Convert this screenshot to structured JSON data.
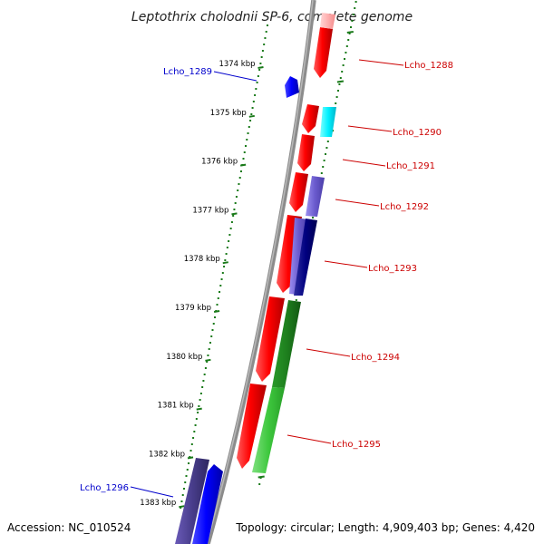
{
  "title": "Leptothrix cholodnii SP-6, complete genome",
  "footer": {
    "accession": "Accession: NC_010524",
    "topology": "Topology: circular; Length: 4,909,403 bp; Genes: 4,420"
  },
  "colors": {
    "backbone": "#8a8a8a",
    "tick": "#1a7a1a",
    "forward_label": "#cc0000",
    "reverse_label": "#0000cc"
  },
  "kbp_ticks": [
    {
      "label": "1374 kbp"
    },
    {
      "label": "1375 kbp"
    },
    {
      "label": "1376 kbp"
    },
    {
      "label": "1377 kbp"
    },
    {
      "label": "1378 kbp"
    },
    {
      "label": "1379 kbp"
    },
    {
      "label": "1380 kbp"
    },
    {
      "label": "1381 kbp"
    },
    {
      "label": "1382 kbp"
    },
    {
      "label": "1383 kbp"
    }
  ],
  "gene_labels": [
    {
      "name": "Lcho_1288",
      "strand": "forward"
    },
    {
      "name": "Lcho_1289",
      "strand": "reverse"
    },
    {
      "name": "Lcho_1290",
      "strand": "forward"
    },
    {
      "name": "Lcho_1291",
      "strand": "forward"
    },
    {
      "name": "Lcho_1292",
      "strand": "forward"
    },
    {
      "name": "Lcho_1293",
      "strand": "forward"
    },
    {
      "name": "Lcho_1294",
      "strand": "forward"
    },
    {
      "name": "Lcho_1295",
      "strand": "forward"
    },
    {
      "name": "Lcho_1296",
      "strand": "reverse"
    }
  ]
}
